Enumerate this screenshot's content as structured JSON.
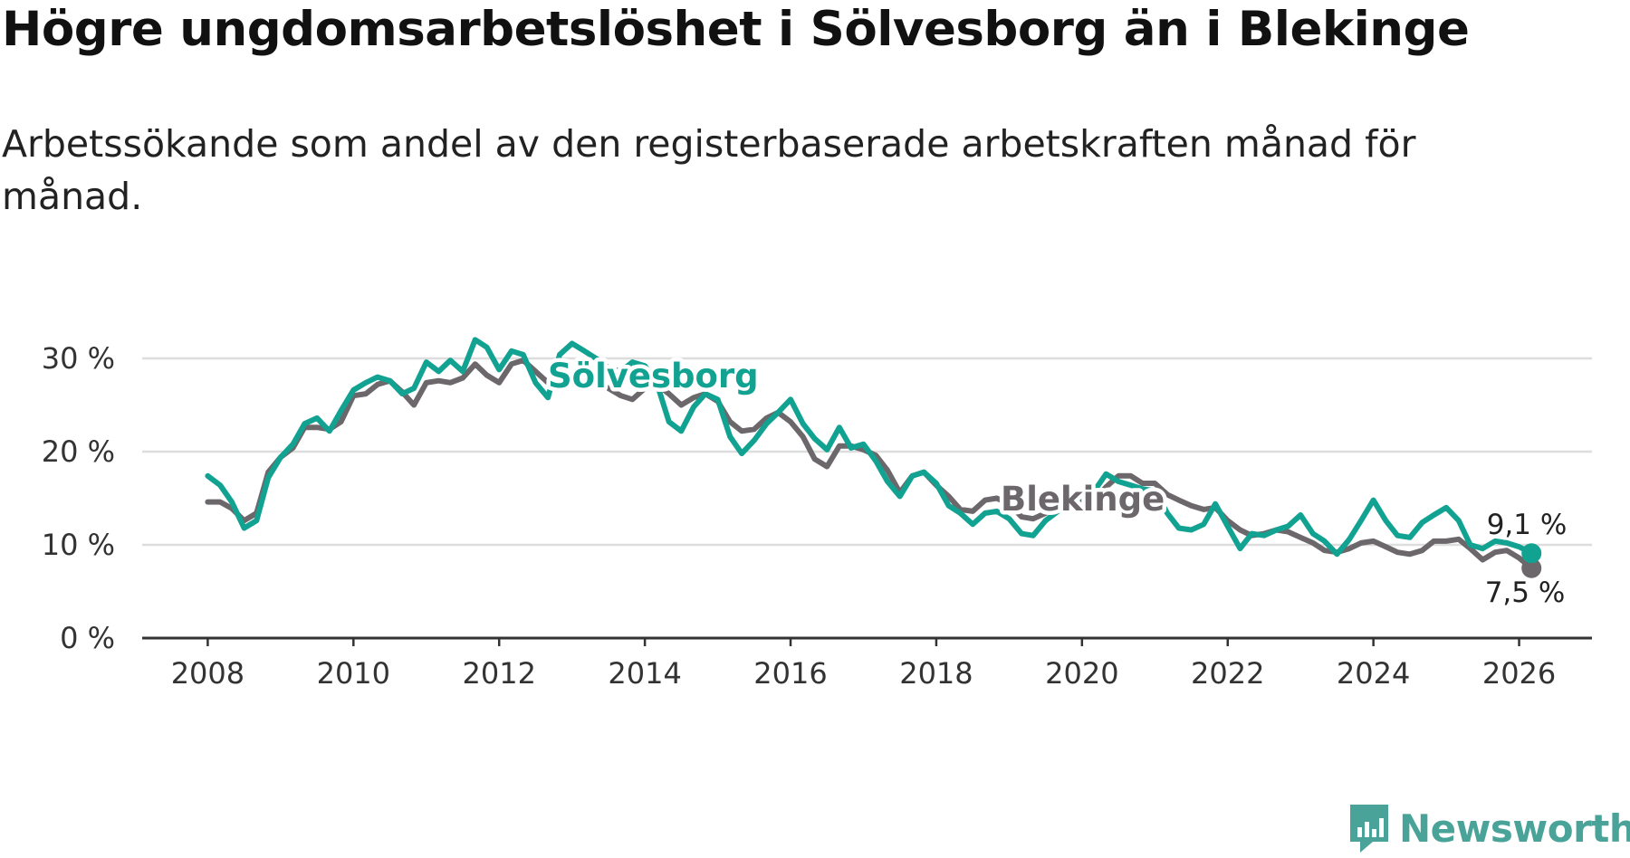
{
  "header": {
    "title": "Högre ungdomsarbetslöshet i Sölvesborg än i Blekinge",
    "subtitle": "Arbetssökande som andel av den registerbaserade arbetskraften månad för månad."
  },
  "brand": {
    "name": "Newsworthy",
    "color": "#4aa398",
    "icon": "newsworthy-logo-icon"
  },
  "colors": {
    "solvesborg": "#11a292",
    "blekinge": "#6b676b",
    "grid": "#dddddd",
    "axis": "#333333"
  },
  "chart_data": {
    "type": "line",
    "title": "Högre ungdomsarbetslöshet i Sölvesborg än i Blekinge",
    "xlabel": "",
    "ylabel": "",
    "xlim": [
      2007.1,
      2027.0
    ],
    "ylim": [
      0,
      30
    ],
    "y_ticks": [
      0,
      10,
      20,
      30
    ],
    "y_tick_labels": [
      "0 %",
      "10 %",
      "20 %",
      "30 %"
    ],
    "x_ticks": [
      2008,
      2010,
      2012,
      2014,
      2016,
      2018,
      2020,
      2022,
      2024,
      2026
    ],
    "x_tick_labels": [
      "2008",
      "2010",
      "2012",
      "2014",
      "2016",
      "2018",
      "2020",
      "2022",
      "2024",
      "2026"
    ],
    "grid": true,
    "series": [
      {
        "name": "Blekinge",
        "color": "#6b676b",
        "end_label": "7,5 %",
        "points": [
          [
            2008.0,
            14.6
          ],
          [
            2008.17,
            14.6
          ],
          [
            2008.33,
            13.9
          ],
          [
            2008.5,
            12.6
          ],
          [
            2008.67,
            13.4
          ],
          [
            2008.83,
            17.8
          ],
          [
            2009.0,
            19.4
          ],
          [
            2009.17,
            20.4
          ],
          [
            2009.33,
            22.6
          ],
          [
            2009.5,
            22.6
          ],
          [
            2009.67,
            22.4
          ],
          [
            2009.83,
            23.2
          ],
          [
            2010.0,
            26.0
          ],
          [
            2010.17,
            26.2
          ],
          [
            2010.33,
            27.2
          ],
          [
            2010.5,
            27.6
          ],
          [
            2010.67,
            26.4
          ],
          [
            2010.83,
            25.0
          ],
          [
            2011.0,
            27.4
          ],
          [
            2011.17,
            27.6
          ],
          [
            2011.33,
            27.4
          ],
          [
            2011.5,
            27.9
          ],
          [
            2011.67,
            29.4
          ],
          [
            2011.83,
            28.2
          ],
          [
            2012.0,
            27.4
          ],
          [
            2012.17,
            29.4
          ],
          [
            2012.33,
            29.8
          ],
          [
            2012.5,
            28.6
          ],
          [
            2012.67,
            27.4
          ],
          [
            2012.83,
            26.8
          ],
          [
            2013.0,
            27.4
          ],
          [
            2013.17,
            28.6
          ],
          [
            2013.33,
            27.4
          ],
          [
            2013.5,
            26.8
          ],
          [
            2013.67,
            26.0
          ],
          [
            2013.83,
            25.6
          ],
          [
            2014.0,
            26.8
          ],
          [
            2014.17,
            27.2
          ],
          [
            2014.33,
            26.2
          ],
          [
            2014.5,
            25.0
          ],
          [
            2014.67,
            25.8
          ],
          [
            2014.83,
            26.2
          ],
          [
            2015.0,
            25.4
          ],
          [
            2015.17,
            23.2
          ],
          [
            2015.33,
            22.2
          ],
          [
            2015.5,
            22.4
          ],
          [
            2015.67,
            23.6
          ],
          [
            2015.83,
            24.2
          ],
          [
            2016.0,
            23.2
          ],
          [
            2016.17,
            21.6
          ],
          [
            2016.33,
            19.2
          ],
          [
            2016.5,
            18.4
          ],
          [
            2016.67,
            20.6
          ],
          [
            2016.83,
            20.6
          ],
          [
            2017.0,
            20.2
          ],
          [
            2017.17,
            19.6
          ],
          [
            2017.33,
            18.0
          ],
          [
            2017.5,
            15.6
          ],
          [
            2017.67,
            17.4
          ],
          [
            2017.83,
            17.8
          ],
          [
            2018.0,
            16.4
          ],
          [
            2018.17,
            15.2
          ],
          [
            2018.33,
            13.8
          ],
          [
            2018.5,
            13.6
          ],
          [
            2018.67,
            14.8
          ],
          [
            2018.83,
            15.0
          ],
          [
            2019.0,
            14.4
          ],
          [
            2019.17,
            13.0
          ],
          [
            2019.33,
            12.8
          ],
          [
            2019.5,
            13.4
          ],
          [
            2019.67,
            14.2
          ],
          [
            2019.83,
            14.4
          ],
          [
            2020.0,
            14.6
          ],
          [
            2020.17,
            14.8
          ],
          [
            2020.33,
            16.2
          ],
          [
            2020.5,
            17.4
          ],
          [
            2020.67,
            17.4
          ],
          [
            2020.83,
            16.6
          ],
          [
            2021.0,
            16.6
          ],
          [
            2021.17,
            15.4
          ],
          [
            2021.33,
            14.8
          ],
          [
            2021.5,
            14.2
          ],
          [
            2021.67,
            13.8
          ],
          [
            2021.83,
            14.0
          ],
          [
            2022.0,
            12.6
          ],
          [
            2022.17,
            11.6
          ],
          [
            2022.33,
            11.0
          ],
          [
            2022.5,
            11.2
          ],
          [
            2022.67,
            11.6
          ],
          [
            2022.83,
            11.4
          ],
          [
            2023.0,
            10.8
          ],
          [
            2023.17,
            10.2
          ],
          [
            2023.33,
            9.4
          ],
          [
            2023.5,
            9.2
          ],
          [
            2023.67,
            9.6
          ],
          [
            2023.83,
            10.2
          ],
          [
            2024.0,
            10.4
          ],
          [
            2024.17,
            9.8
          ],
          [
            2024.33,
            9.2
          ],
          [
            2024.5,
            9.0
          ],
          [
            2024.67,
            9.4
          ],
          [
            2024.83,
            10.4
          ],
          [
            2025.0,
            10.4
          ],
          [
            2025.17,
            10.6
          ],
          [
            2025.33,
            9.6
          ],
          [
            2025.5,
            8.4
          ],
          [
            2025.67,
            9.2
          ],
          [
            2025.83,
            9.4
          ],
          [
            2026.0,
            8.6
          ],
          [
            2026.17,
            7.5
          ]
        ]
      },
      {
        "name": "Sölvesborg",
        "color": "#11a292",
        "end_label": "9,1 %",
        "points": [
          [
            2008.0,
            17.4
          ],
          [
            2008.17,
            16.4
          ],
          [
            2008.33,
            14.6
          ],
          [
            2008.5,
            11.8
          ],
          [
            2008.67,
            12.6
          ],
          [
            2008.83,
            17.2
          ],
          [
            2009.0,
            19.4
          ],
          [
            2009.17,
            20.8
          ],
          [
            2009.33,
            23.0
          ],
          [
            2009.5,
            23.6
          ],
          [
            2009.67,
            22.2
          ],
          [
            2009.83,
            24.4
          ],
          [
            2010.0,
            26.6
          ],
          [
            2010.17,
            27.4
          ],
          [
            2010.33,
            28.0
          ],
          [
            2010.5,
            27.6
          ],
          [
            2010.67,
            26.2
          ],
          [
            2010.83,
            26.8
          ],
          [
            2011.0,
            29.6
          ],
          [
            2011.17,
            28.6
          ],
          [
            2011.33,
            29.8
          ],
          [
            2011.5,
            28.6
          ],
          [
            2011.67,
            32.0
          ],
          [
            2011.83,
            31.2
          ],
          [
            2012.0,
            28.8
          ],
          [
            2012.17,
            30.8
          ],
          [
            2012.33,
            30.4
          ],
          [
            2012.5,
            27.4
          ],
          [
            2012.67,
            25.8
          ],
          [
            2012.83,
            30.4
          ],
          [
            2013.0,
            31.6
          ],
          [
            2013.17,
            30.8
          ],
          [
            2013.33,
            30.0
          ],
          [
            2013.5,
            29.0
          ],
          [
            2013.67,
            28.6
          ],
          [
            2013.83,
            29.6
          ],
          [
            2014.0,
            29.2
          ],
          [
            2014.17,
            27.2
          ],
          [
            2014.33,
            23.2
          ],
          [
            2014.5,
            22.2
          ],
          [
            2014.67,
            24.8
          ],
          [
            2014.83,
            26.2
          ],
          [
            2015.0,
            25.6
          ],
          [
            2015.17,
            21.6
          ],
          [
            2015.33,
            19.8
          ],
          [
            2015.5,
            21.2
          ],
          [
            2015.67,
            23.0
          ],
          [
            2015.83,
            24.2
          ],
          [
            2016.0,
            25.6
          ],
          [
            2016.17,
            23.0
          ],
          [
            2016.33,
            21.4
          ],
          [
            2016.5,
            20.2
          ],
          [
            2016.67,
            22.6
          ],
          [
            2016.83,
            20.4
          ],
          [
            2017.0,
            20.8
          ],
          [
            2017.17,
            19.0
          ],
          [
            2017.33,
            16.8
          ],
          [
            2017.5,
            15.2
          ],
          [
            2017.67,
            17.4
          ],
          [
            2017.83,
            17.8
          ],
          [
            2018.0,
            16.6
          ],
          [
            2018.17,
            14.2
          ],
          [
            2018.33,
            13.4
          ],
          [
            2018.5,
            12.2
          ],
          [
            2018.67,
            13.4
          ],
          [
            2018.83,
            13.6
          ],
          [
            2019.0,
            12.8
          ],
          [
            2019.17,
            11.2
          ],
          [
            2019.33,
            11.0
          ],
          [
            2019.5,
            12.6
          ],
          [
            2019.67,
            13.6
          ],
          [
            2019.83,
            14.4
          ],
          [
            2020.0,
            15.2
          ],
          [
            2020.17,
            15.8
          ],
          [
            2020.33,
            17.6
          ],
          [
            2020.5,
            16.8
          ],
          [
            2020.67,
            16.4
          ],
          [
            2020.83,
            16.0
          ],
          [
            2021.0,
            15.8
          ],
          [
            2021.17,
            13.4
          ],
          [
            2021.33,
            11.8
          ],
          [
            2021.5,
            11.6
          ],
          [
            2021.67,
            12.2
          ],
          [
            2021.83,
            14.4
          ],
          [
            2022.0,
            12.0
          ],
          [
            2022.17,
            9.6
          ],
          [
            2022.33,
            11.2
          ],
          [
            2022.5,
            11.0
          ],
          [
            2022.67,
            11.6
          ],
          [
            2022.83,
            12.0
          ],
          [
            2023.0,
            13.2
          ],
          [
            2023.17,
            11.2
          ],
          [
            2023.33,
            10.4
          ],
          [
            2023.5,
            9.0
          ],
          [
            2023.67,
            10.6
          ],
          [
            2023.83,
            12.6
          ],
          [
            2024.0,
            14.8
          ],
          [
            2024.17,
            12.6
          ],
          [
            2024.33,
            11.0
          ],
          [
            2024.5,
            10.8
          ],
          [
            2024.67,
            12.4
          ],
          [
            2024.83,
            13.2
          ],
          [
            2025.0,
            14.0
          ],
          [
            2025.17,
            12.6
          ],
          [
            2025.33,
            10.0
          ],
          [
            2025.5,
            9.6
          ],
          [
            2025.67,
            10.4
          ],
          [
            2025.83,
            10.2
          ],
          [
            2026.0,
            9.8
          ],
          [
            2026.17,
            9.1
          ]
        ]
      }
    ]
  }
}
